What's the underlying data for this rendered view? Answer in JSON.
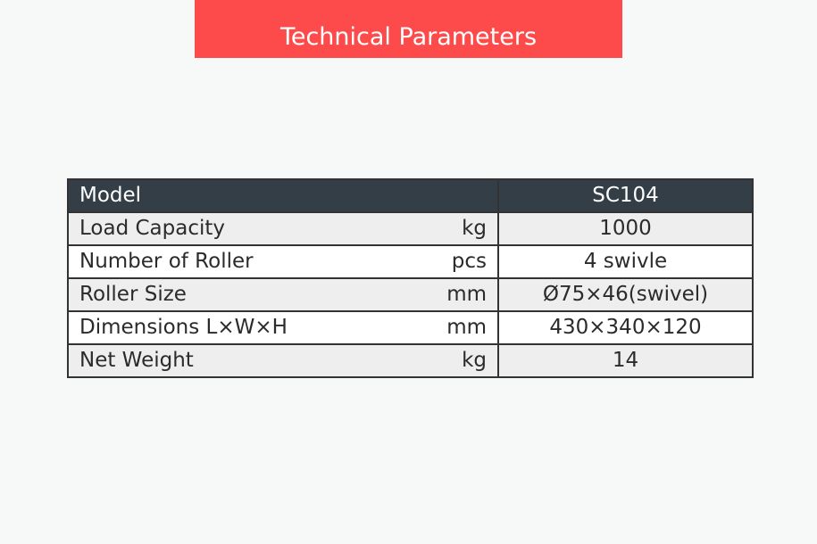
{
  "title": "Technical Parameters",
  "colors": {
    "banner": "#fd4a4a",
    "header_bg": "#333e47"
  },
  "table": {
    "header": {
      "label": "Model",
      "value": "SC104"
    },
    "rows": [
      {
        "label": "Load Capacity",
        "unit": "kg",
        "value": "1000"
      },
      {
        "label": "Number of Roller",
        "unit": "pcs",
        "value": "4 swivle"
      },
      {
        "label": "Roller Size",
        "unit": "mm",
        "value": "Ø75×46(swivel)"
      },
      {
        "label": "Dimensions L×W×H",
        "unit": "mm",
        "value": "430×340×120"
      },
      {
        "label": "Net Weight",
        "unit": "kg",
        "value": "14"
      }
    ]
  }
}
